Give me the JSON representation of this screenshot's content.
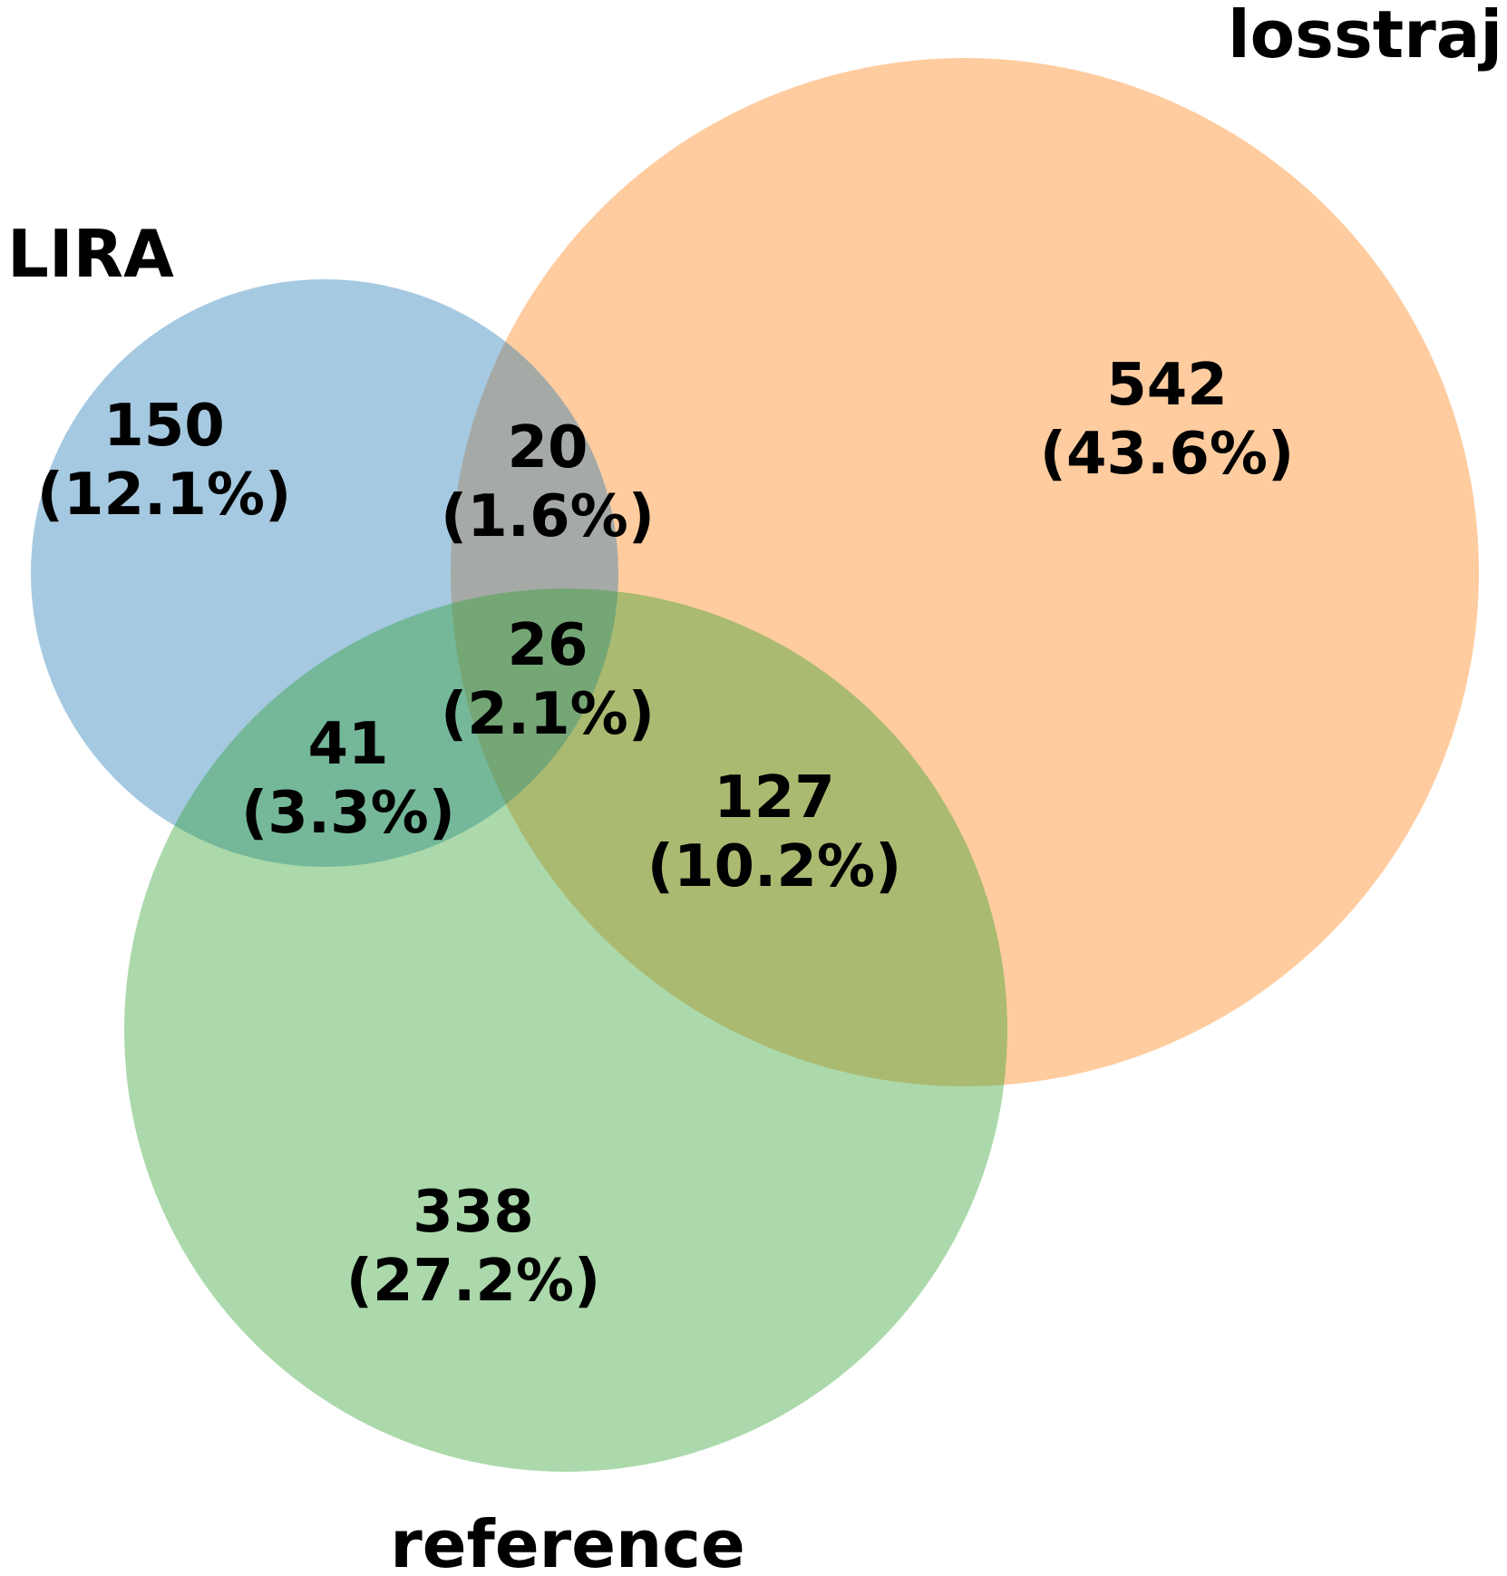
{
  "sets": [
    {
      "id": "lira",
      "label": "LIRA",
      "color": "#1f77b4"
    },
    {
      "id": "losstraj",
      "label": "losstraj",
      "color": "#ff7f0e"
    },
    {
      "id": "reference",
      "label": "reference",
      "color": "#2ca02c"
    }
  ],
  "regions": [
    {
      "id": "lira-only",
      "count": "150",
      "percent": "(12.1%)"
    },
    {
      "id": "lira-losstraj",
      "count": "20",
      "percent": "(1.6%)"
    },
    {
      "id": "losstraj-only",
      "count": "542",
      "percent": "(43.6%)"
    },
    {
      "id": "all-three",
      "count": "26",
      "percent": "(2.1%)"
    },
    {
      "id": "lira-reference",
      "count": "41",
      "percent": "(3.3%)"
    },
    {
      "id": "losstraj-reference",
      "count": "127",
      "percent": "(10.2%)"
    },
    {
      "id": "reference-only",
      "count": "338",
      "percent": "(27.2%)"
    }
  ]
}
